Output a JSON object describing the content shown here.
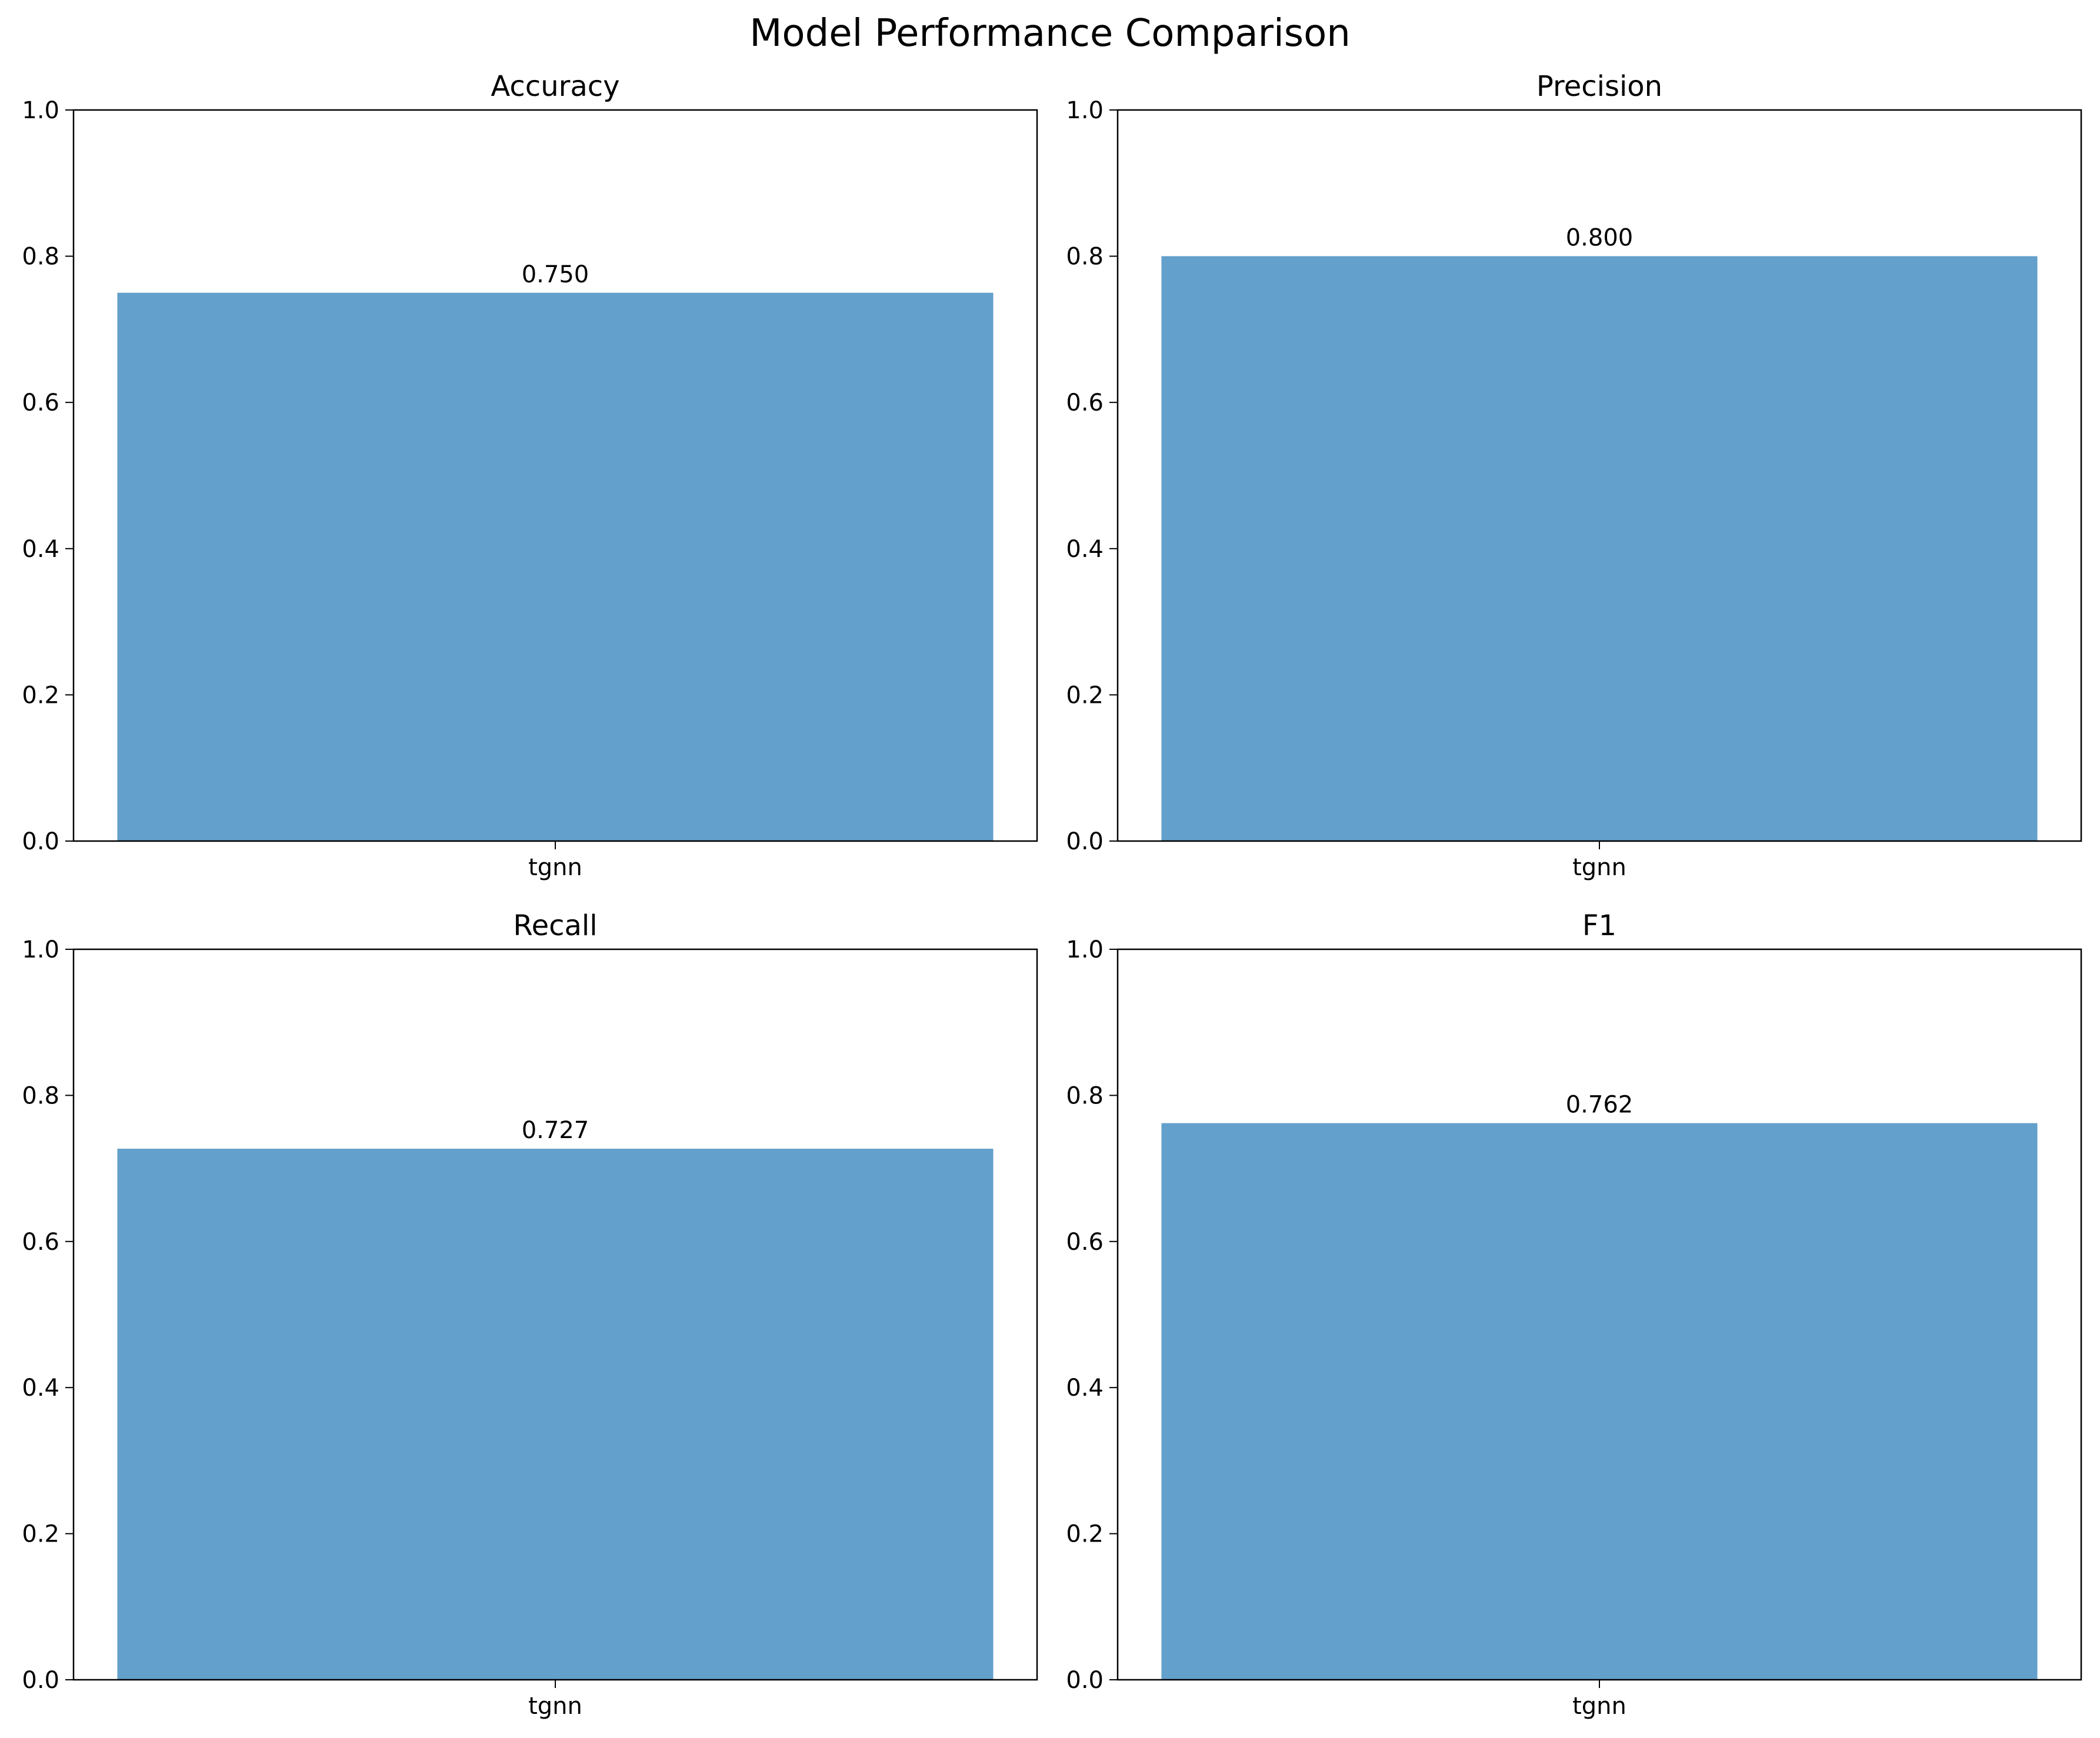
{
  "figure": {
    "title": "Model Performance Comparison",
    "bar_color": "#63A0CB"
  },
  "chart_data": [
    {
      "type": "bar",
      "title": "Accuracy",
      "categories": [
        "tgnn"
      ],
      "values": [
        0.75
      ],
      "value_labels": [
        "0.750"
      ],
      "ylim": [
        0,
        1
      ],
      "yticks": [
        0,
        0.2,
        0.4,
        0.6,
        0.8,
        1.0
      ],
      "ytick_labels": [
        "0.0",
        "0.2",
        "0.4",
        "0.6",
        "0.8",
        "1.0"
      ],
      "grid": false
    },
    {
      "type": "bar",
      "title": "Precision",
      "categories": [
        "tgnn"
      ],
      "values": [
        0.8
      ],
      "value_labels": [
        "0.800"
      ],
      "ylim": [
        0,
        1
      ],
      "yticks": [
        0,
        0.2,
        0.4,
        0.6,
        0.8,
        1.0
      ],
      "ytick_labels": [
        "0.0",
        "0.2",
        "0.4",
        "0.6",
        "0.8",
        "1.0"
      ],
      "grid": false
    },
    {
      "type": "bar",
      "title": "Recall",
      "categories": [
        "tgnn"
      ],
      "values": [
        0.727
      ],
      "value_labels": [
        "0.727"
      ],
      "ylim": [
        0,
        1
      ],
      "yticks": [
        0,
        0.2,
        0.4,
        0.6,
        0.8,
        1.0
      ],
      "ytick_labels": [
        "0.0",
        "0.2",
        "0.4",
        "0.6",
        "0.8",
        "1.0"
      ],
      "grid": false
    },
    {
      "type": "bar",
      "title": "F1",
      "categories": [
        "tgnn"
      ],
      "values": [
        0.762
      ],
      "value_labels": [
        "0.762"
      ],
      "ylim": [
        0,
        1
      ],
      "yticks": [
        0,
        0.2,
        0.4,
        0.6,
        0.8,
        1.0
      ],
      "ytick_labels": [
        "0.0",
        "0.2",
        "0.4",
        "0.6",
        "0.8",
        "1.0"
      ],
      "grid": false
    }
  ]
}
